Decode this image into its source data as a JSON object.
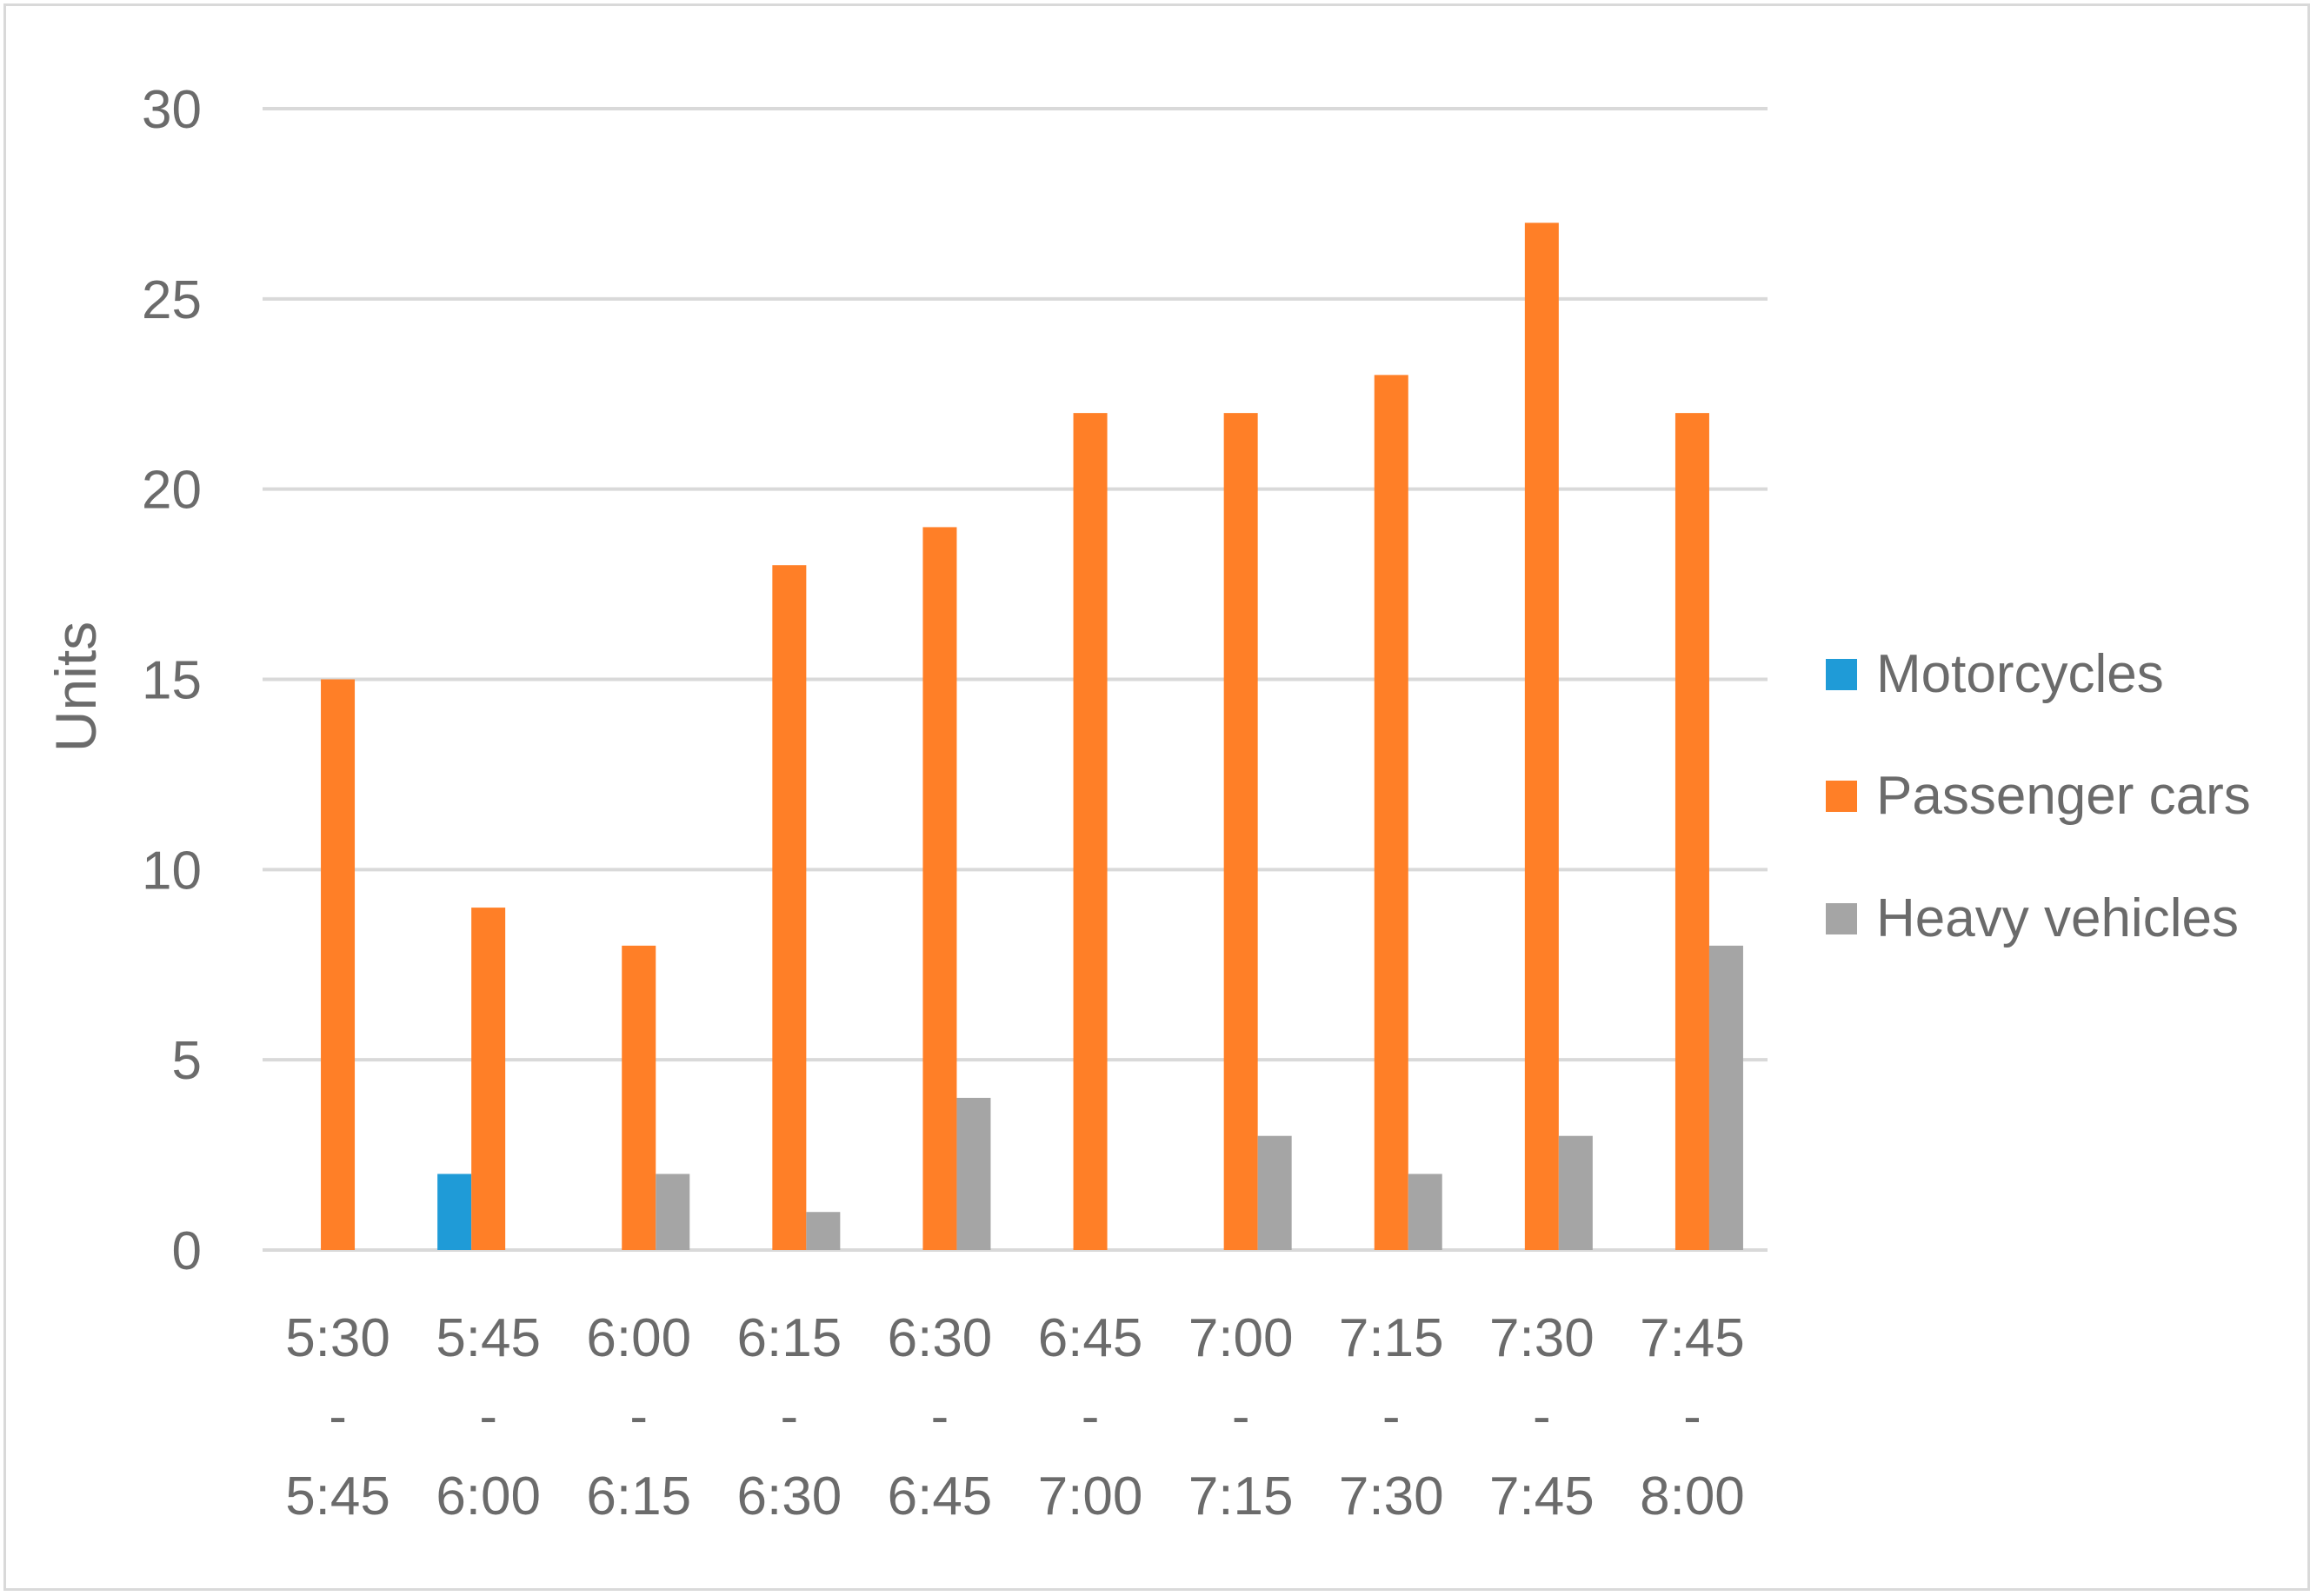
{
  "chart_data": {
    "type": "bar",
    "title": "",
    "xlabel": "",
    "ylabel": "Units",
    "ylim": [
      0,
      30
    ],
    "yticks": [
      0,
      5,
      10,
      15,
      20,
      25,
      30
    ],
    "grid": true,
    "legend_position": "right",
    "categories": [
      [
        "5:30",
        "-",
        "5:45"
      ],
      [
        "5:45",
        "-",
        "6:00"
      ],
      [
        "6:00",
        "-",
        "6:15"
      ],
      [
        "6:15",
        "-",
        "6:30"
      ],
      [
        "6:30",
        "-",
        "6:45"
      ],
      [
        "6:45",
        "-",
        "7:00"
      ],
      [
        "7:00",
        "-",
        "7:15"
      ],
      [
        "7:15",
        "-",
        "7:30"
      ],
      [
        "7:30",
        "-",
        "7:45"
      ],
      [
        "7:45",
        "-",
        "8:00"
      ]
    ],
    "series": [
      {
        "name": "Motorcycles",
        "color": "#1f9bd7",
        "values": [
          0,
          2,
          0,
          0,
          0,
          0,
          0,
          0,
          0,
          0
        ]
      },
      {
        "name": "Passenger cars",
        "color": "#ff7f27",
        "values": [
          15,
          9,
          8,
          18,
          19,
          22,
          22,
          23,
          27,
          22
        ]
      },
      {
        "name": "Heavy vehicles",
        "color": "#a5a5a5",
        "values": [
          0,
          0,
          2,
          1,
          4,
          0,
          3,
          2,
          3,
          8
        ]
      }
    ]
  }
}
